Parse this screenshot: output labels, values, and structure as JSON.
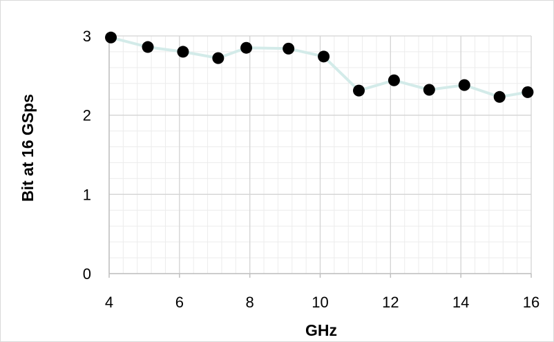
{
  "chart_data": {
    "type": "line",
    "title": "",
    "xlabel": "GHz",
    "ylabel": "Bit at 16 GSps",
    "xlim": [
      4,
      16
    ],
    "ylim": [
      0,
      3
    ],
    "x_ticks": [
      "4",
      "6",
      "8",
      "10",
      "12",
      "14",
      "16"
    ],
    "y_ticks": [
      "0",
      "1",
      "2",
      "3"
    ],
    "grid": "major and minor",
    "legend": "none",
    "series": [
      {
        "line_color": "#d3ebe9",
        "marker_color": "#000000",
        "points": [
          {
            "x": 4.05,
            "y": 2.98
          },
          {
            "x": 5.1,
            "y": 2.86
          },
          {
            "x": 6.1,
            "y": 2.8
          },
          {
            "x": 7.1,
            "y": 2.72
          },
          {
            "x": 7.9,
            "y": 2.85
          },
          {
            "x": 9.1,
            "y": 2.84
          },
          {
            "x": 10.1,
            "y": 2.74
          },
          {
            "x": 11.1,
            "y": 2.31
          },
          {
            "x": 12.1,
            "y": 2.44
          },
          {
            "x": 13.1,
            "y": 2.32
          },
          {
            "x": 14.1,
            "y": 2.38
          },
          {
            "x": 15.1,
            "y": 2.23
          },
          {
            "x": 15.9,
            "y": 2.29
          }
        ]
      }
    ]
  }
}
